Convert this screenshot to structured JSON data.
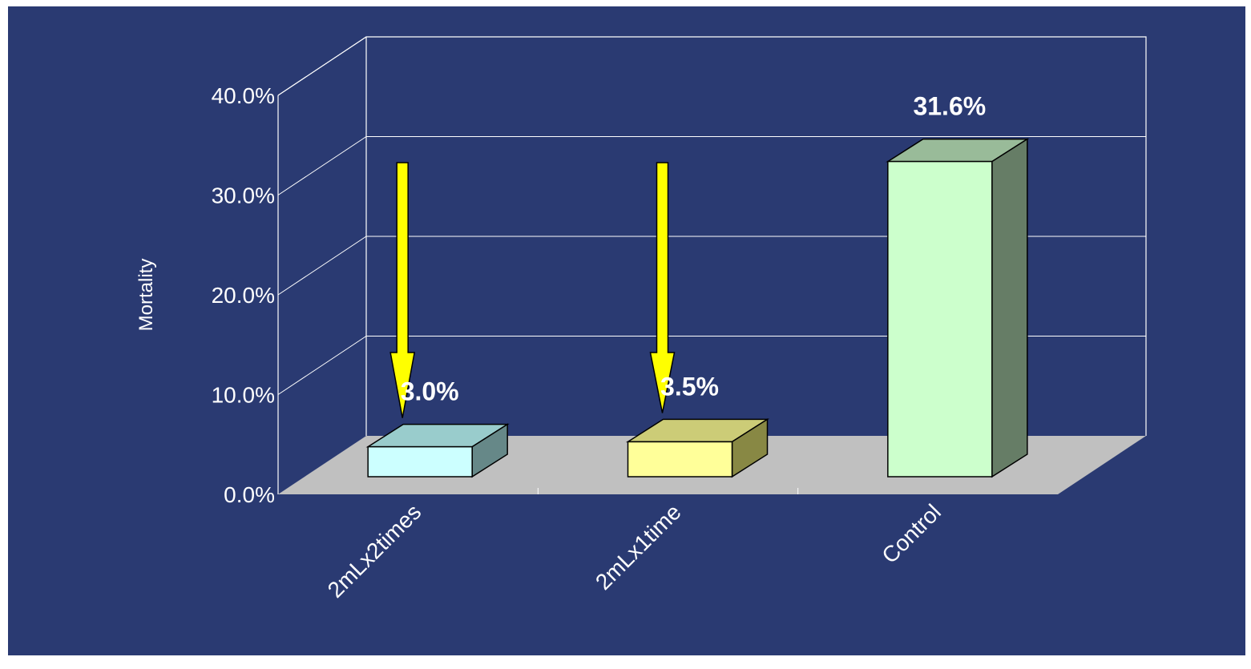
{
  "colors": {
    "background": "#2a3a72",
    "floor": "#c0c0c0",
    "grid": "#ffffff",
    "arrow": "#ffff00"
  },
  "chart_data": {
    "type": "bar",
    "title": "",
    "xlabel": "",
    "ylabel": "Mortality",
    "categories": [
      "2mLx2times",
      "2mLx1time",
      "Control"
    ],
    "values": [
      3.0,
      3.5,
      31.6
    ],
    "value_labels": [
      "3.0%",
      "3.5%",
      "31.6%"
    ],
    "ylim": [
      0,
      40
    ],
    "yticks": [
      0,
      10,
      20,
      30,
      40
    ],
    "ytick_labels": [
      "0.0%",
      "10.0%",
      "20.0%",
      "30.0%",
      "40.0%"
    ],
    "grid": true,
    "legend": "none",
    "style": "3d-bar",
    "bar_colors": {
      "front": [
        "#ccffff",
        "#ffff99",
        "#ccffcc"
      ],
      "top": [
        "#99cccc",
        "#cccc77",
        "#99bb99"
      ],
      "side": [
        "#668888",
        "#888844",
        "#667d66"
      ]
    },
    "annotations": [
      "down-arrow-icon",
      "down-arrow-icon"
    ]
  }
}
